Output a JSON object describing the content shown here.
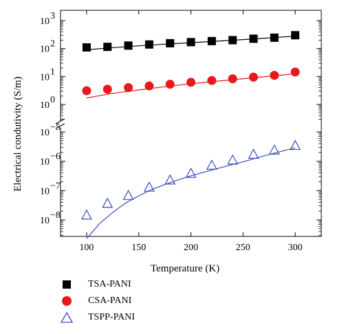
{
  "chart_data": {
    "type": "scatter",
    "xlabel": "Temperature (K)",
    "ylabel": "Electrical condutivity (S/m)",
    "x_ticks": [
      "100",
      "150",
      "200",
      "250",
      "300"
    ],
    "xlim": [
      75,
      325
    ],
    "y_scale": "log",
    "broken_axis": true,
    "upper_panel": {
      "ylim": [
        1,
        1000
      ],
      "y_ticks": [
        {
          "value": 1000,
          "base": "10",
          "exp": "3"
        },
        {
          "value": 100,
          "base": "10",
          "exp": "2"
        },
        {
          "value": 10,
          "base": "10",
          "exp": "1"
        },
        {
          "value": 1,
          "base": "10",
          "exp": "0"
        }
      ]
    },
    "lower_panel": {
      "ylim": [
        1e-09,
        1e-05
      ],
      "y_ticks": [
        {
          "value": 1e-05,
          "base": "10",
          "exp": "−5"
        },
        {
          "value": 1e-06,
          "base": "10",
          "exp": "−6"
        },
        {
          "value": 1e-07,
          "base": "10",
          "exp": "−7"
        },
        {
          "value": 1e-08,
          "base": "10",
          "exp": "−8"
        }
      ]
    },
    "series": [
      {
        "name": "TSA-PANI",
        "panel": "upper",
        "marker": "square",
        "color": "#000000",
        "x": [
          100,
          120,
          140,
          160,
          180,
          200,
          220,
          240,
          260,
          280,
          300
        ],
        "values": [
          110,
          115,
          128,
          140,
          155,
          170,
          185,
          200,
          225,
          245,
          300
        ],
        "fit": {
          "x": [
            100,
            125,
            150,
            175,
            200,
            225,
            250,
            275,
            300
          ],
          "y": [
            90,
            108,
            125,
            143,
            162,
            184,
            210,
            240,
            280
          ]
        }
      },
      {
        "name": "CSA-PANI",
        "panel": "upper",
        "marker": "circle",
        "color": "#e8191c",
        "x": [
          100,
          120,
          140,
          160,
          180,
          200,
          220,
          240,
          260,
          280,
          300
        ],
        "values": [
          3.1,
          3.5,
          4.0,
          4.6,
          5.3,
          6.2,
          7.2,
          8.3,
          9.5,
          11.0,
          14.5
        ],
        "fit": {
          "x": [
            100,
            125,
            150,
            175,
            200,
            225,
            250,
            275,
            300
          ],
          "y": [
            1.7,
            2.5,
            3.3,
            4.3,
            5.5,
            6.8,
            8.3,
            10.2,
            12.5
          ]
        }
      },
      {
        "name": "TSPP-PANI",
        "panel": "lower",
        "marker": "triangle-open",
        "color": "#3b4bbd",
        "x": [
          100,
          120,
          140,
          160,
          180,
          200,
          220,
          240,
          260,
          280,
          300
        ],
        "values": [
          1.4e-08,
          3.5e-08,
          6.5e-08,
          1.25e-07,
          2.2e-07,
          3.7e-07,
          7e-07,
          1.05e-06,
          1.65e-06,
          2.3e-06,
          3.3e-06
        ],
        "fit": {
          "x": [
            100,
            112.5,
            125,
            137.5,
            150,
            162.5,
            175,
            187.5,
            200,
            225,
            250,
            275,
            300
          ],
          "y": [
            2.3e-09,
            7.5e-09,
            1.8e-08,
            3.8e-08,
            6.6e-08,
            1.1e-07,
            1.6e-07,
            2.3e-07,
            3.2e-07,
            5.6e-07,
            9.6e-07,
            1.7e-06,
            2.9e-06
          ]
        }
      }
    ]
  },
  "legend": {
    "items": [
      {
        "label": "TSA-PANI",
        "marker": "square",
        "color": "#000000"
      },
      {
        "label": "CSA-PANI",
        "marker": "circle",
        "color": "#e8191c"
      },
      {
        "label": "TSPP-PANI",
        "marker": "triangle-open",
        "color": "#3b4bbd"
      }
    ]
  }
}
